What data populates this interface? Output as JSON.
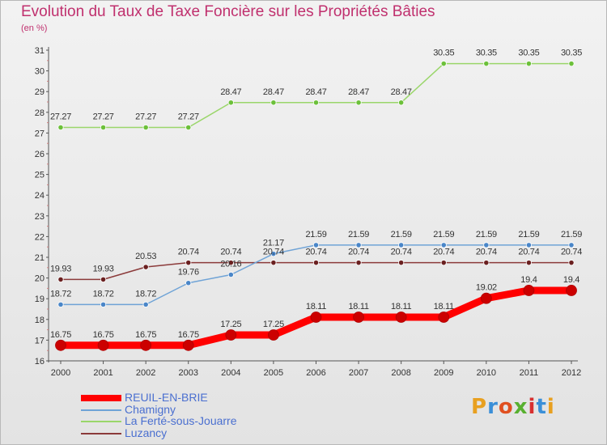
{
  "header": {
    "title": "Evolution du Taux de Taxe Foncière sur les Propriétés Bâties",
    "subtitle": "(en %)"
  },
  "logo": {
    "text": "Proxiti",
    "colors": [
      "#e8a020",
      "#3a8fd8",
      "#e05020",
      "#58b030",
      "#d83030",
      "#3a8fd8",
      "#e8a020"
    ]
  },
  "chart_data": {
    "type": "line",
    "x": [
      2000,
      2001,
      2002,
      2003,
      2004,
      2005,
      2006,
      2007,
      2008,
      2009,
      2010,
      2011,
      2012
    ],
    "ylim": [
      16,
      31
    ],
    "yticks": [
      16,
      17,
      18,
      19,
      20,
      21,
      22,
      23,
      24,
      25,
      26,
      27,
      28,
      29,
      30,
      31
    ],
    "grid": false,
    "legend_position": "bottom-left",
    "series": [
      {
        "name": "REUIL-EN-BRIE",
        "color": "#ff0000",
        "width": 9,
        "marker_color": "#cc0000",
        "values": [
          16.75,
          16.75,
          16.75,
          16.75,
          17.25,
          17.25,
          18.11,
          18.11,
          18.11,
          18.11,
          19.02,
          19.4,
          19.4
        ],
        "labels": [
          "16.75",
          "16.75",
          "16.75",
          "16.75",
          "17.25",
          "17.25",
          "18.11",
          "18.11",
          "18.11",
          "18.11",
          "19.02",
          "19.4",
          "19.4"
        ]
      },
      {
        "name": "Chamigny",
        "color": "#6fa3d6",
        "width": 1.5,
        "marker_color": "#4a86c8",
        "values": [
          18.72,
          18.72,
          18.72,
          19.76,
          20.16,
          21.17,
          21.59,
          21.59,
          21.59,
          21.59,
          21.59,
          21.59,
          21.59
        ],
        "labels": [
          "18.72",
          "18.72",
          "18.72",
          "19.76",
          "20.16",
          "21.17",
          "21.59",
          "21.59",
          "21.59",
          "21.59",
          "21.59",
          "21.59",
          "21.59"
        ]
      },
      {
        "name": "La Ferté-sous-Jouarre",
        "color": "#9ad66a",
        "width": 1.5,
        "marker_color": "#6cc03a",
        "values": [
          27.27,
          27.27,
          27.27,
          27.27,
          28.47,
          28.47,
          28.47,
          28.47,
          28.47,
          30.35,
          30.35,
          30.35,
          30.35
        ],
        "labels": [
          "27.27",
          "27.27",
          "27.27",
          "27.27",
          "28.47",
          "28.47",
          "28.47",
          "28.47",
          "28.47",
          "30.35",
          "30.35",
          "30.35",
          "30.35"
        ]
      },
      {
        "name": "Luzancy",
        "color": "#8b3a3a",
        "width": 1.5,
        "marker_color": "#6a2020",
        "values": [
          19.93,
          19.93,
          20.53,
          20.74,
          20.74,
          20.74,
          20.74,
          20.74,
          20.74,
          20.74,
          20.74,
          20.74,
          20.74
        ],
        "labels": [
          "19.93",
          "19.93",
          "20.53",
          "20.74",
          "20.74",
          "20.74",
          "20.74",
          "20.74",
          "20.74",
          "20.74",
          "20.74",
          "20.74",
          "20.74"
        ]
      }
    ]
  }
}
